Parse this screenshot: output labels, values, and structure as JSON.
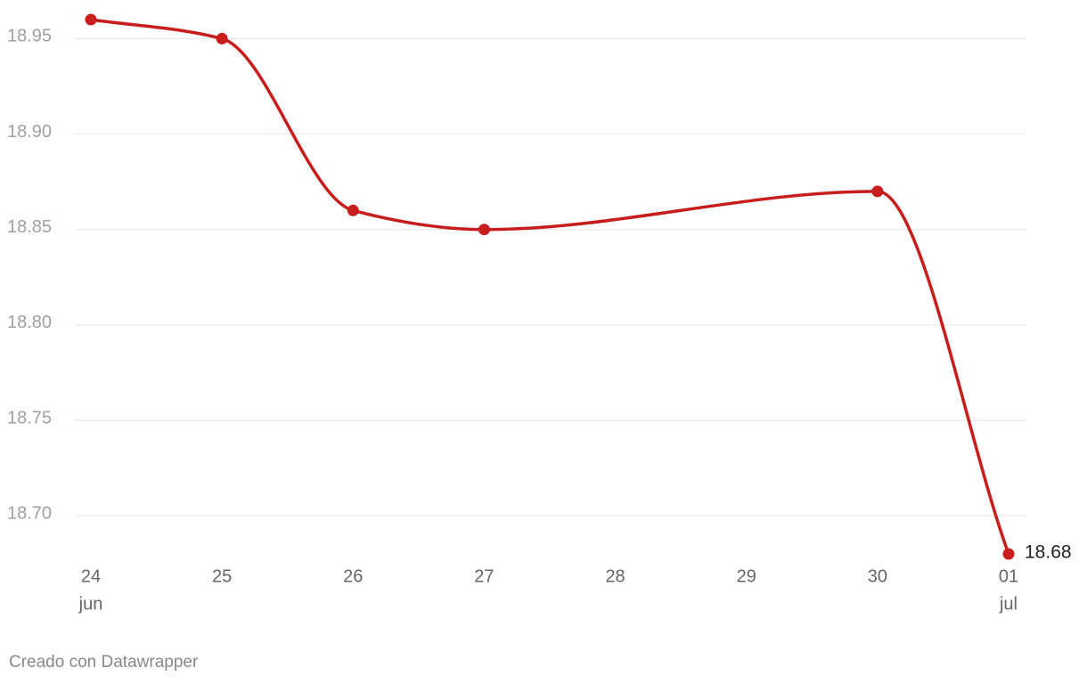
{
  "chart_data": {
    "type": "line",
    "x": [
      "06-24",
      "06-25",
      "06-26",
      "06-27",
      "06-30",
      "07-01"
    ],
    "series": [
      {
        "color": "#c71e1d",
        "values": [
          18.96,
          18.95,
          18.86,
          18.85,
          18.87,
          18.68
        ]
      }
    ],
    "xlim": [
      "06-24",
      "07-01"
    ],
    "xticks": [
      {
        "value": "06-24",
        "label": "24",
        "sublabel": "jun"
      },
      {
        "value": "06-25",
        "label": "25"
      },
      {
        "value": "06-26",
        "label": "26"
      },
      {
        "value": "06-27",
        "label": "27"
      },
      {
        "value": "06-28",
        "label": "28"
      },
      {
        "value": "06-29",
        "label": "29"
      },
      {
        "value": "06-30",
        "label": "30"
      },
      {
        "value": "07-01",
        "label": "01",
        "sublabel": "jul"
      }
    ],
    "ylim": [
      18.68,
      18.96
    ],
    "yticks": [
      {
        "value": 18.7,
        "label": "18.70"
      },
      {
        "value": 18.75,
        "label": "18.75"
      },
      {
        "value": 18.8,
        "label": "18.80"
      },
      {
        "value": 18.85,
        "label": "18.85"
      },
      {
        "value": 18.9,
        "label": "18.90"
      },
      {
        "value": 18.95,
        "label": "18.95"
      }
    ],
    "grid": true,
    "footer": "Creado con Datawrapper"
  }
}
